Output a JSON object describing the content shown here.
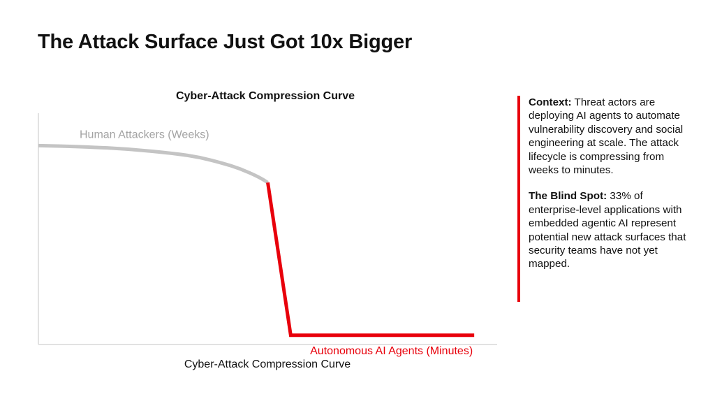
{
  "slide": {
    "title": "The Attack Surface Just Got 10x Bigger"
  },
  "chart_data": {
    "type": "line",
    "title": "Cyber-Attack Compression Curve",
    "caption": "Cyber-Attack Compression Curve",
    "xlabel": "",
    "ylabel": "",
    "grid": false,
    "legend": "none",
    "annotations": [
      {
        "text": "Human Attackers (Weeks)",
        "series": "human",
        "color": "#a3a3a3"
      },
      {
        "text": "Autonomous AI Agents (Minutes)",
        "series": "ai",
        "color": "#e8000b"
      }
    ],
    "series": [
      {
        "key": "human",
        "color": "#c4c4c4",
        "x": [
          0,
          10,
          20,
          30,
          35,
          40,
          44,
          48,
          50
        ],
        "y": [
          0.86,
          0.855,
          0.845,
          0.825,
          0.81,
          0.785,
          0.76,
          0.725,
          0.7
        ]
      },
      {
        "key": "ai",
        "color": "#e8000b",
        "x": [
          50,
          55,
          95
        ],
        "y": [
          0.7,
          0.04,
          0.04
        ]
      }
    ],
    "xlim": [
      0,
      100
    ],
    "ylim": [
      0,
      1
    ]
  },
  "context": {
    "context_label": "Context:",
    "context_text": " Threat actors are deploying AI agents to automate vulnerability discovery and social engineering at scale. The attack lifecycle is compressing from weeks to minutes.",
    "blindspot_label": "The Blind Spot:",
    "blindspot_text": " 33% of enterprise-level applications with embedded agentic AI represent potential new attack surfaces that security teams have not yet mapped.",
    "accent_color": "#e8000b"
  }
}
